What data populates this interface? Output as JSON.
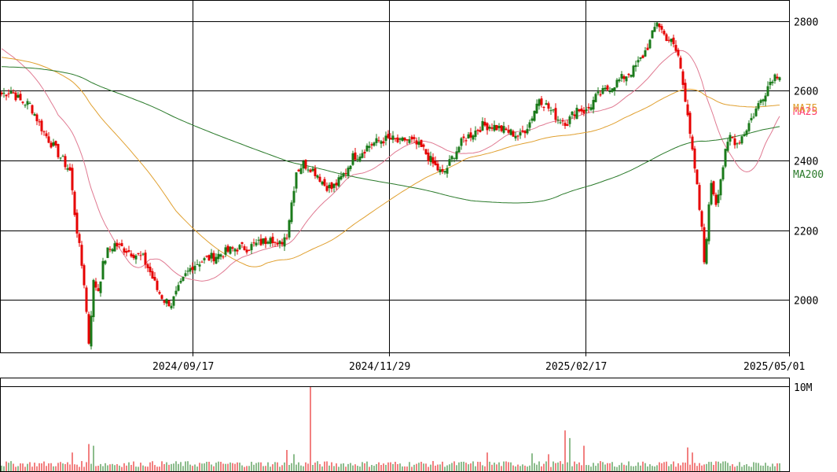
{
  "chart_data": {
    "type": "candlestick",
    "x_axis_labels": [
      "2024/09/17",
      "2024/11/29",
      "2025/02/17",
      "2025/05/01"
    ],
    "price_axis": {
      "ticks": [
        2000,
        2200,
        2400,
        2600,
        2800
      ],
      "ylim": [
        1850,
        2860
      ]
    },
    "volume_axis": {
      "tick_label": "10M",
      "tick_value": 10000000
    },
    "grid": true,
    "moving_averages": [
      {
        "name": "MA25",
        "color": "#e07a92",
        "label_color": "#ff3c6e"
      },
      {
        "name": "MA75",
        "color": "#e0a030",
        "label_color": "#e0a030"
      },
      {
        "name": "MA200",
        "color": "#2a7a2a",
        "label_color": "#2a7a2a"
      }
    ],
    "colors": {
      "up": "#1a7a1a",
      "down": "#e60000",
      "grid": "#000000"
    },
    "price_anchors": [
      [
        0,
        2590
      ],
      [
        4,
        2600
      ],
      [
        8,
        2570
      ],
      [
        12,
        2560
      ],
      [
        15,
        2520
      ],
      [
        18,
        2480
      ],
      [
        22,
        2440
      ],
      [
        25,
        2410
      ],
      [
        27,
        2390
      ],
      [
        29,
        2370
      ],
      [
        31,
        2250
      ],
      [
        33,
        2150
      ],
      [
        35,
        2050
      ],
      [
        37,
        1880
      ],
      [
        39,
        2050
      ],
      [
        41,
        2030
      ],
      [
        43,
        2100
      ],
      [
        45,
        2140
      ],
      [
        48,
        2160
      ],
      [
        51,
        2150
      ],
      [
        54,
        2140
      ],
      [
        57,
        2130
      ],
      [
        60,
        2120
      ],
      [
        63,
        2080
      ],
      [
        66,
        2030
      ],
      [
        69,
        2000
      ],
      [
        72,
        1990
      ],
      [
        75,
        2030
      ],
      [
        78,
        2070
      ],
      [
        81,
        2100
      ],
      [
        84,
        2110
      ],
      [
        88,
        2120
      ],
      [
        92,
        2130
      ],
      [
        96,
        2140
      ],
      [
        100,
        2150
      ],
      [
        104,
        2150
      ],
      [
        108,
        2160
      ],
      [
        112,
        2170
      ],
      [
        114,
        2190
      ],
      [
        117,
        2150
      ],
      [
        121,
        2190
      ],
      [
        125,
        2370
      ],
      [
        128,
        2390
      ],
      [
        131,
        2380
      ],
      [
        134,
        2360
      ],
      [
        137,
        2330
      ],
      [
        140,
        2320
      ],
      [
        143,
        2340
      ],
      [
        146,
        2370
      ],
      [
        149,
        2410
      ],
      [
        152,
        2420
      ],
      [
        155,
        2440
      ],
      [
        158,
        2450
      ],
      [
        162,
        2460
      ],
      [
        166,
        2460
      ],
      [
        169,
        2450
      ],
      [
        171,
        2460
      ],
      [
        175,
        2450
      ],
      [
        179,
        2430
      ],
      [
        183,
        2390
      ],
      [
        187,
        2360
      ],
      [
        189,
        2380
      ],
      [
        192,
        2420
      ],
      [
        196,
        2460
      ],
      [
        200,
        2480
      ],
      [
        204,
        2500
      ],
      [
        208,
        2500
      ],
      [
        212,
        2490
      ],
      [
        216,
        2480
      ],
      [
        220,
        2470
      ],
      [
        224,
        2510
      ],
      [
        228,
        2580
      ],
      [
        232,
        2550
      ],
      [
        236,
        2520
      ],
      [
        240,
        2510
      ],
      [
        244,
        2550
      ],
      [
        248,
        2540
      ],
      [
        252,
        2580
      ],
      [
        256,
        2600
      ],
      [
        260,
        2620
      ],
      [
        264,
        2640
      ],
      [
        268,
        2660
      ],
      [
        272,
        2700
      ],
      [
        275,
        2740
      ],
      [
        278,
        2800
      ],
      [
        281,
        2760
      ],
      [
        284,
        2740
      ],
      [
        287,
        2700
      ],
      [
        289,
        2620
      ],
      [
        291,
        2540
      ],
      [
        293,
        2420
      ],
      [
        295,
        2320
      ],
      [
        297,
        2200
      ],
      [
        298,
        2110
      ],
      [
        301,
        2340
      ],
      [
        303,
        2280
      ],
      [
        305,
        2350
      ],
      [
        307,
        2420
      ],
      [
        309,
        2470
      ],
      [
        312,
        2450
      ],
      [
        315,
        2480
      ],
      [
        318,
        2520
      ],
      [
        321,
        2560
      ],
      [
        324,
        2600
      ],
      [
        327,
        2640
      ],
      [
        330,
        2650
      ]
    ],
    "volume_spikes": [
      [
        131,
        10000000
      ],
      [
        37,
        3200000
      ],
      [
        39,
        3000000
      ],
      [
        30,
        2200000
      ],
      [
        239,
        4800000
      ],
      [
        241,
        3900000
      ],
      [
        247,
        3000000
      ],
      [
        291,
        2800000
      ],
      [
        293,
        2200000
      ],
      [
        206,
        2200000
      ],
      [
        121,
        2500000
      ],
      [
        124,
        2000000
      ],
      [
        225,
        2100000
      ],
      [
        232,
        2000000
      ]
    ]
  }
}
